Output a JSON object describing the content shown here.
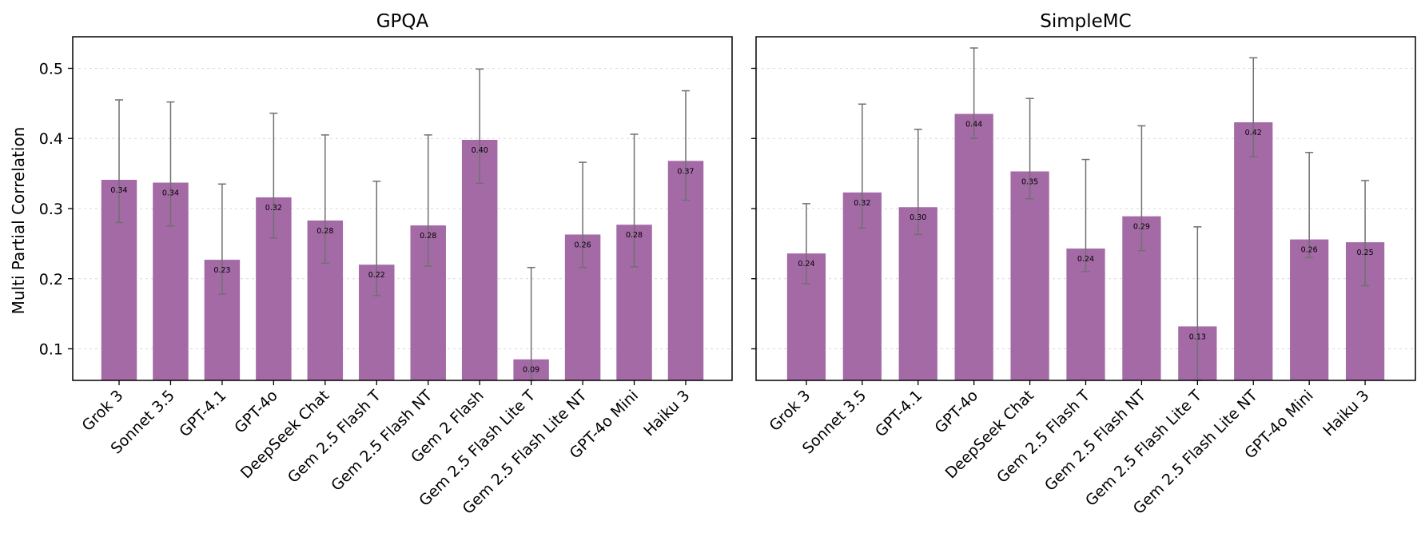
{
  "chart_data": [
    {
      "type": "bar",
      "title": "GPQA",
      "xlabel": "",
      "ylabel": "Multi Partial Correlation",
      "ylim": [
        0.055,
        0.545
      ],
      "yticks": [
        0.1,
        0.2,
        0.3,
        0.4,
        0.5
      ],
      "ytick_labels": [
        "0.1",
        "0.2",
        "0.3",
        "0.4",
        "0.5"
      ],
      "grid": true,
      "categories": [
        "Grok 3",
        "Sonnet 3.5",
        "GPT-4.1",
        "GPT-4o",
        "DeepSeek Chat",
        "Gem 2.5 Flash T",
        "Gem 2.5 Flash NT",
        "Gem 2 Flash",
        "Gem 2.5 Flash Lite T",
        "Gem 2.5 Flash Lite NT",
        "GPT-4o Mini",
        "Haiku 3"
      ],
      "values": [
        0.341,
        0.337,
        0.227,
        0.316,
        0.283,
        0.22,
        0.276,
        0.398,
        0.085,
        0.263,
        0.277,
        0.368
      ],
      "value_labels": [
        "0.34",
        "0.34",
        "0.23",
        "0.32",
        "0.28",
        "0.22",
        "0.28",
        "0.40",
        "0.09",
        "0.26",
        "0.28",
        "0.37"
      ],
      "err_low": [
        0.28,
        0.275,
        0.178,
        0.258,
        0.222,
        0.176,
        0.218,
        0.336,
        0.055,
        0.216,
        0.217,
        0.312
      ],
      "err_high": [
        0.455,
        0.452,
        0.335,
        0.436,
        0.405,
        0.339,
        0.405,
        0.499,
        0.216,
        0.366,
        0.406,
        0.468
      ]
    },
    {
      "type": "bar",
      "title": "SimpleMC",
      "xlabel": "",
      "ylabel": "",
      "ylim": [
        0.055,
        0.545
      ],
      "yticks": [
        0.1,
        0.2,
        0.3,
        0.4,
        0.5
      ],
      "ytick_labels": [],
      "grid": true,
      "categories": [
        "Grok 3",
        "Sonnet 3.5",
        "GPT-4.1",
        "GPT-4o",
        "DeepSeek Chat",
        "Gem 2.5 Flash T",
        "Gem 2.5 Flash NT",
        "Gem 2.5 Flash Lite T",
        "Gem 2.5 Flash Lite NT",
        "GPT-4o Mini",
        "Haiku 3"
      ],
      "values": [
        0.236,
        0.323,
        0.302,
        0.435,
        0.353,
        0.243,
        0.289,
        0.132,
        0.423,
        0.256,
        0.252
      ],
      "value_labels": [
        "0.24",
        "0.32",
        "0.30",
        "0.44",
        "0.35",
        "0.24",
        "0.29",
        "0.13",
        "0.42",
        "0.26",
        "0.25"
      ],
      "err_low": [
        0.193,
        0.272,
        0.263,
        0.4,
        0.314,
        0.21,
        0.24,
        0.055,
        0.374,
        0.23,
        0.19
      ],
      "err_high": [
        0.307,
        0.449,
        0.413,
        0.529,
        0.457,
        0.37,
        0.418,
        0.274,
        0.515,
        0.38,
        0.34
      ]
    }
  ]
}
